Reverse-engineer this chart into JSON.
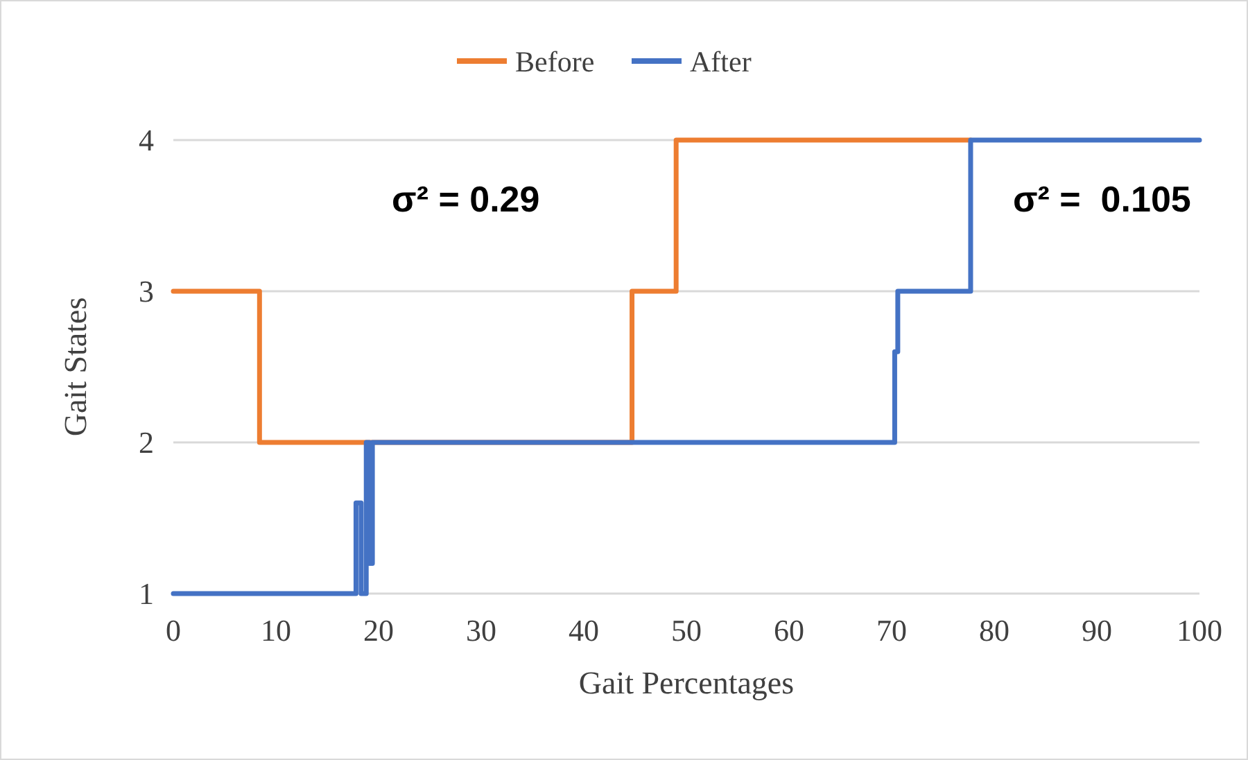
{
  "chart_data": {
    "type": "line",
    "xlabel": "Gait Percentages",
    "ylabel": "Gait States",
    "xlim": [
      0,
      100
    ],
    "xticks": [
      0,
      10,
      20,
      30,
      40,
      50,
      60,
      70,
      80,
      90,
      100
    ],
    "ylim": [
      1,
      4
    ],
    "yticks": [
      1,
      2,
      3,
      4
    ],
    "grid": "y",
    "legend": "top",
    "marker": "none",
    "annotations": [
      "σ² = 0.29",
      "σ² =  0.105"
    ],
    "series": [
      {
        "name": "Before",
        "color": "#ed7d31",
        "x": [
          0,
          8.4,
          8.4,
          44.7,
          44.7,
          49.0,
          49.0,
          77.7
        ],
        "values": [
          3,
          3,
          2,
          2,
          3,
          3,
          4,
          4
        ]
      },
      {
        "name": "After",
        "color": "#4472c4",
        "x": [
          0,
          17.8,
          17.8,
          18.3,
          18.3,
          18.8,
          18.8,
          19.1,
          19.1,
          19.4,
          19.4,
          70.3,
          70.3,
          70.6,
          70.6,
          77.7,
          77.7,
          100
        ],
        "values": [
          1,
          1,
          1.6,
          1.6,
          1,
          1,
          2,
          2,
          1.2,
          1.2,
          2,
          2,
          2.6,
          2.6,
          3,
          3,
          4,
          4
        ]
      }
    ]
  }
}
